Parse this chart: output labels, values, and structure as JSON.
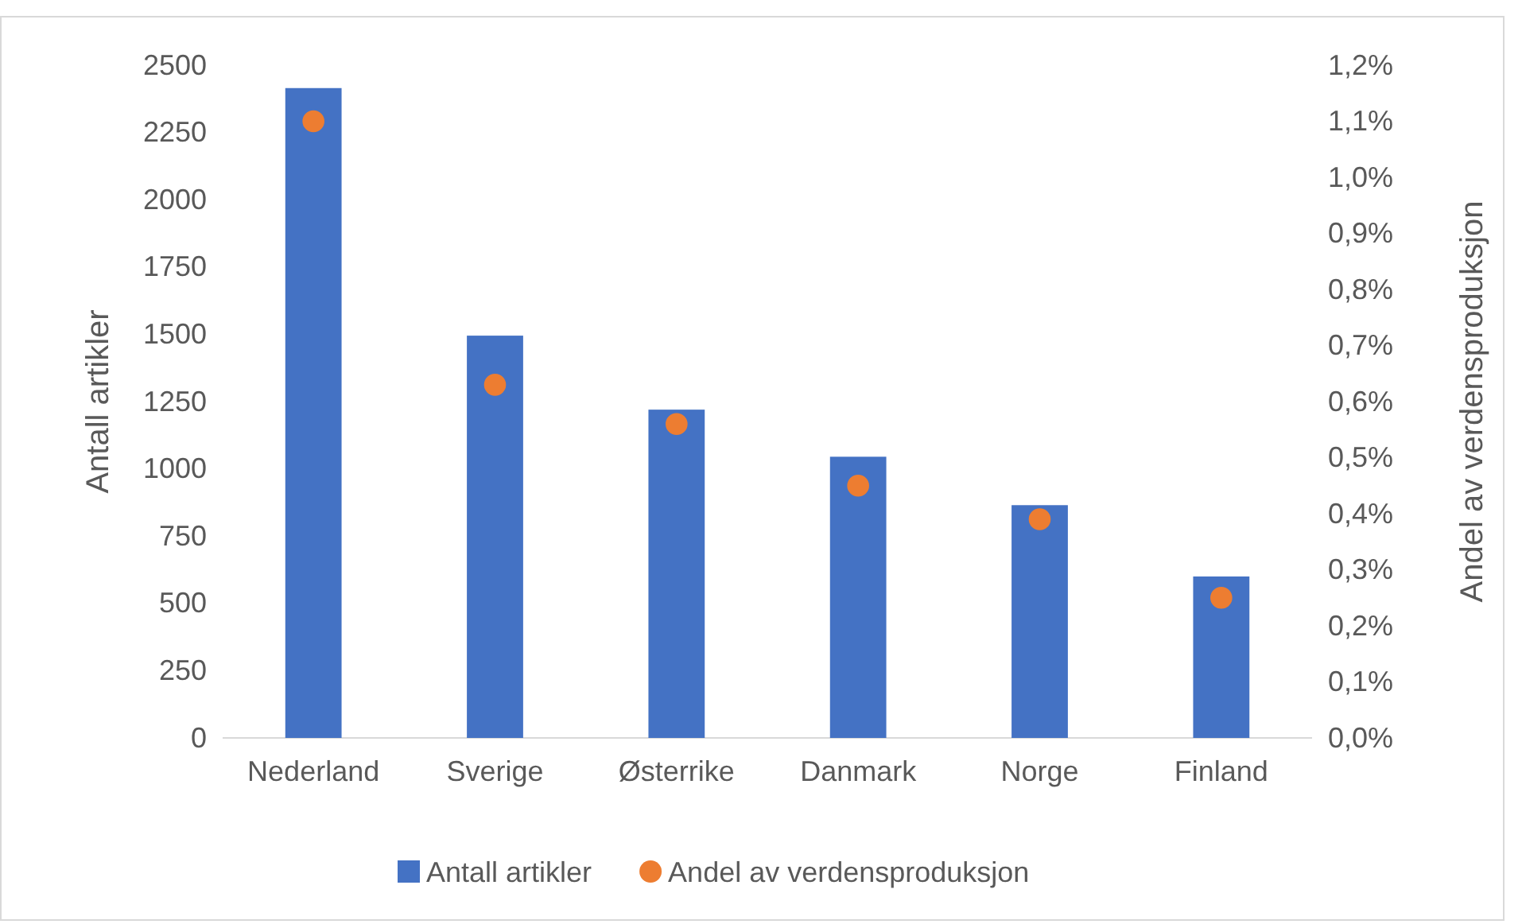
{
  "chart_data": {
    "type": "bar",
    "ylabel": "Antall artikler",
    "y2label": "Andel av verdensproduksjon",
    "categories": [
      "Nederland",
      "Sverige",
      "Østerrike",
      "Danmark",
      "Norge",
      "Finland"
    ],
    "series": [
      {
        "name": "Antall artikler",
        "color": "#4472c4",
        "values": [
          2415,
          1495,
          1220,
          1045,
          865,
          600
        ]
      },
      {
        "name": "Andel av verdensproduksjon",
        "type": "scatter",
        "axis": "y2",
        "color": "#ed7d31",
        "values": [
          1.1,
          0.63,
          0.56,
          0.45,
          0.39,
          0.25
        ]
      }
    ],
    "ylim": [
      0,
      2500
    ],
    "yticks": [
      0,
      250,
      500,
      750,
      1000,
      1250,
      1500,
      1750,
      2000,
      2250,
      2500
    ],
    "y2lim": [
      0,
      1.2
    ],
    "y2ticks": [
      {
        "value": 0,
        "label": "0,0%"
      },
      {
        "value": 0.1,
        "label": "0,1%"
      },
      {
        "value": 0.2,
        "label": "0,2%"
      },
      {
        "value": 0.3,
        "label": "0,3%"
      },
      {
        "value": 0.4,
        "label": "0,4%"
      },
      {
        "value": 0.5,
        "label": "0,5%"
      },
      {
        "value": 0.6,
        "label": "0,6%"
      },
      {
        "value": 0.7,
        "label": "0,7%"
      },
      {
        "value": 0.8,
        "label": "0,8%"
      },
      {
        "value": 0.9,
        "label": "0,9%"
      },
      {
        "value": 1.0,
        "label": "1,0%"
      },
      {
        "value": 1.1,
        "label": "1,1%"
      },
      {
        "value": 1.2,
        "label": "1,2%"
      }
    ],
    "grid": false,
    "legend": "bottom",
    "marker": "circle"
  }
}
